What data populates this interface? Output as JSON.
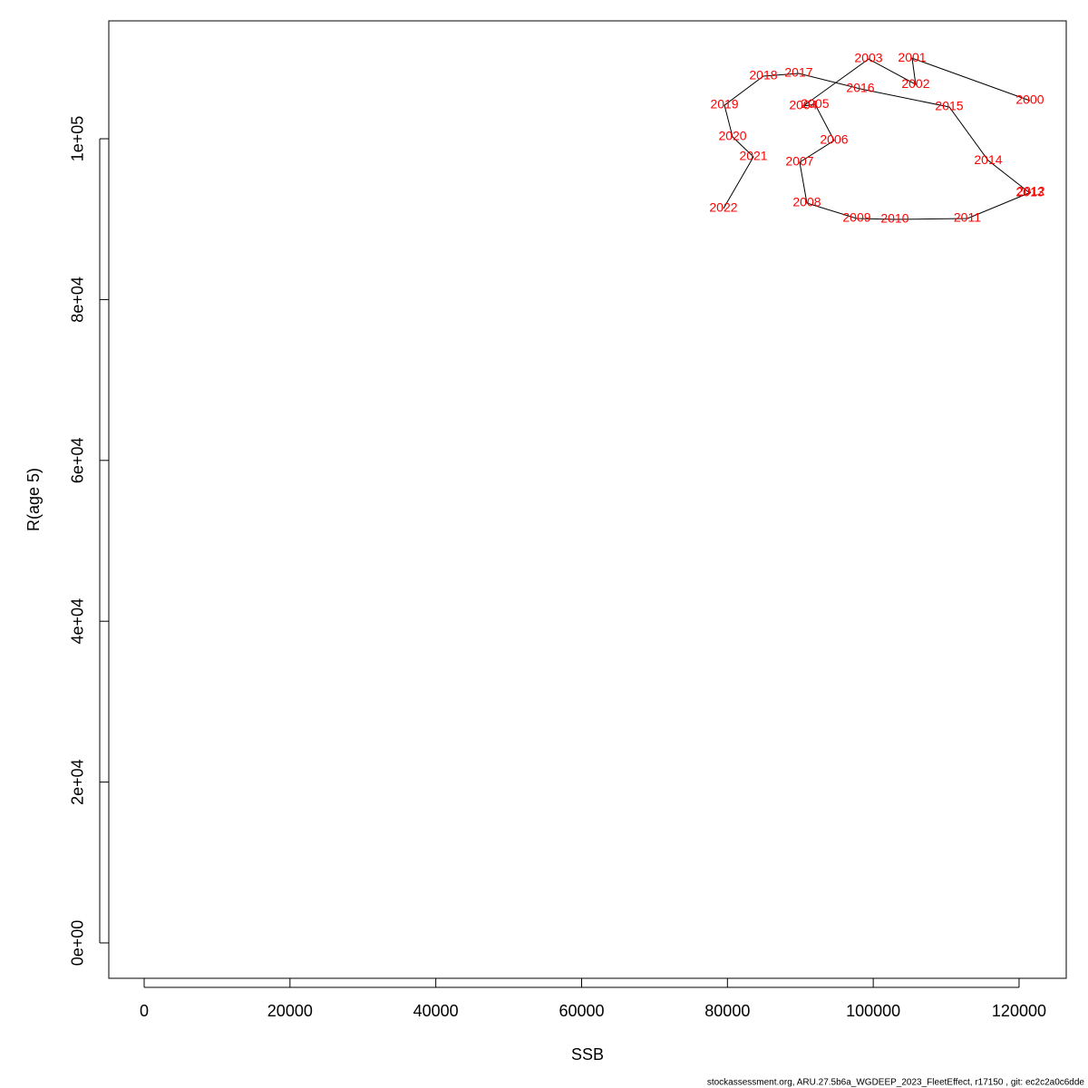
{
  "chart_data": {
    "type": "line",
    "x_label": "SSB",
    "y_label": "R(age 5)",
    "footer": "stockassessment.org, ARU.27.5b6a_WGDEEP_2023_FleetEffect, r17150 , git: ec2c2a0c6dde",
    "labels": [
      "2000",
      "2001",
      "2002",
      "2003",
      "2004",
      "2005",
      "2006",
      "2007",
      "2008",
      "2009",
      "2010",
      "2011",
      "2012",
      "2013",
      "2014",
      "2015",
      "2016",
      "2017",
      "2018",
      "2019",
      "2020",
      "2021",
      "2022"
    ],
    "x": [
      121490,
      105330,
      105820,
      99360,
      90400,
      92020,
      94630,
      89910,
      90900,
      97740,
      102960,
      112910,
      121620,
      121490,
      115770,
      110430,
      98240,
      89780,
      84930,
      79590,
      80710,
      83570,
      79460
    ],
    "values": [
      104740,
      110030,
      106760,
      109920,
      104060,
      104280,
      99780,
      97070,
      92000,
      90080,
      89970,
      90080,
      93350,
      93240,
      97290,
      103950,
      106200,
      108120,
      107780,
      104170,
      100230,
      97750,
      91320
    ],
    "line_color": "#000000",
    "label_color": "#ff0000",
    "xlim": [
      -4850,
      126470
    ],
    "ylim": [
      -4400,
      114660
    ],
    "xticks": [
      0,
      20000,
      40000,
      60000,
      80000,
      100000,
      120000
    ],
    "yticks": [
      {
        "value": 0,
        "label": "0e+00"
      },
      {
        "value": 20000,
        "label": "2e+04"
      },
      {
        "value": 40000,
        "label": "4e+04"
      },
      {
        "value": 60000,
        "label": "6e+04"
      },
      {
        "value": 80000,
        "label": "8e+04"
      },
      {
        "value": 100000,
        "label": "1e+05"
      }
    ]
  }
}
